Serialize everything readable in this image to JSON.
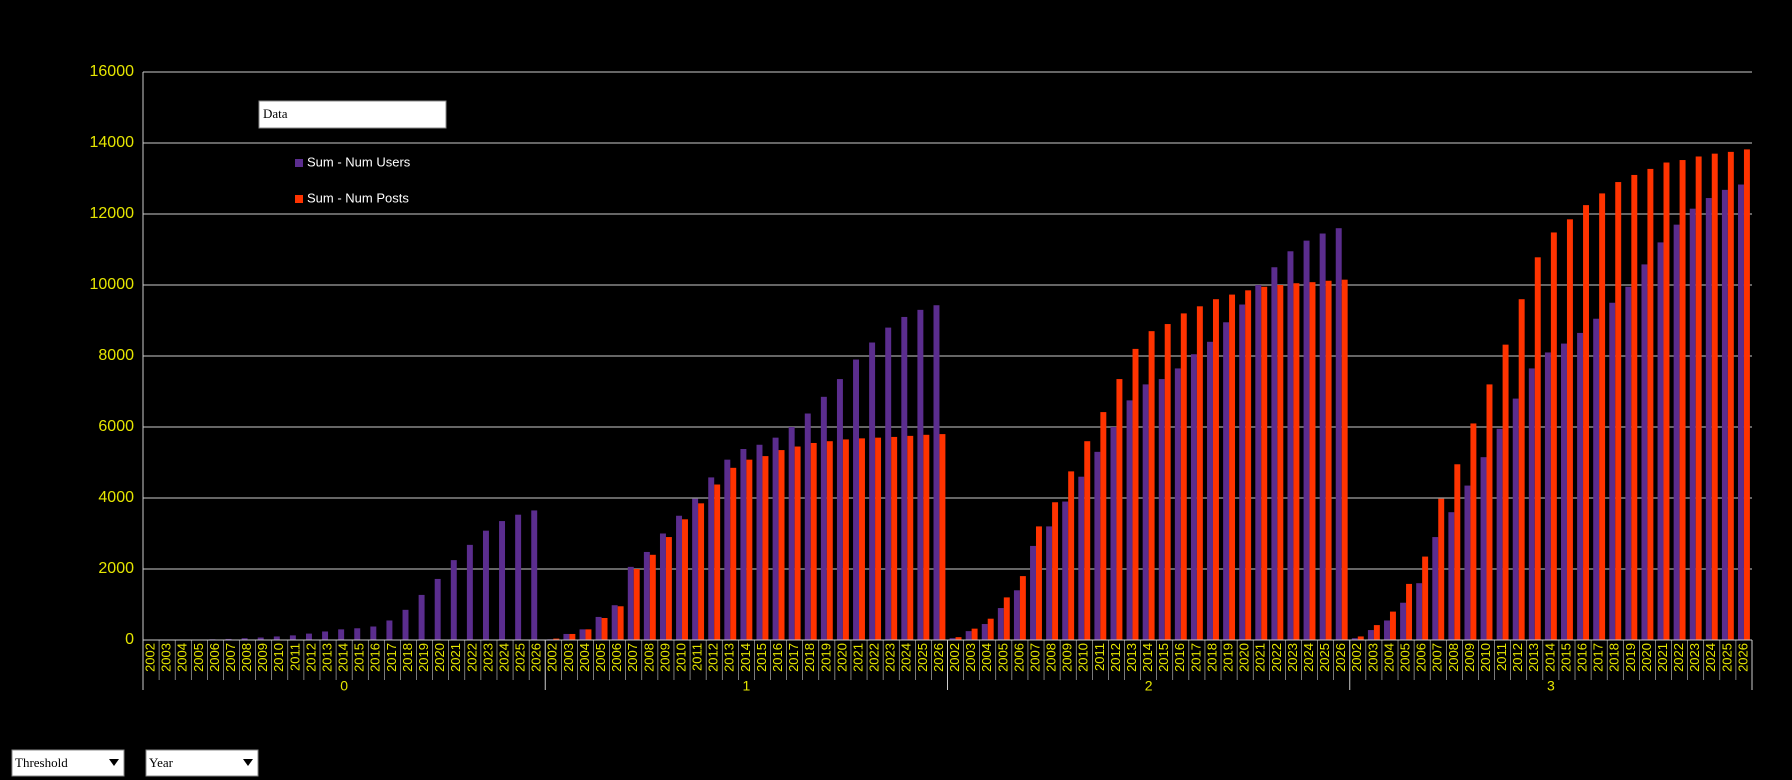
{
  "chart_data": {
    "type": "bar",
    "data_field": "Data",
    "page_fields": [
      "Threshold",
      "Year"
    ],
    "groups": [
      "0",
      "1",
      "2",
      "3"
    ],
    "categories": [
      "2002",
      "2003",
      "2004",
      "2005",
      "2006",
      "2007",
      "2008",
      "2009",
      "2010",
      "2011",
      "2012",
      "2013",
      "2014",
      "2015",
      "2016",
      "2017",
      "2018",
      "2019",
      "2020",
      "2021",
      "2022",
      "2023",
      "2024",
      "2025",
      "2026"
    ],
    "series": [
      {
        "name": "Sum - Num Users",
        "color": "#5b2d8e",
        "values": [
          [
            0,
            0,
            0,
            10,
            20,
            30,
            50,
            70,
            100,
            130,
            180,
            240,
            300,
            330,
            380,
            550,
            850,
            1270,
            1720,
            2250,
            2680,
            3080,
            3350,
            3530,
            3650
          ],
          [
            20,
            170,
            300,
            650,
            980,
            2060,
            2480,
            3000,
            3500,
            3980,
            4580,
            5080,
            5380,
            5500,
            5700,
            6000,
            6380,
            6850,
            7350,
            7900,
            8380,
            8800,
            9100,
            9300,
            9430
          ],
          [
            50,
            250,
            450,
            900,
            1400,
            2650,
            3200,
            3900,
            4600,
            5300,
            6000,
            6750,
            7200,
            7350,
            7650,
            8050,
            8400,
            8950,
            9450,
            10000,
            10500,
            10950,
            11250,
            11450,
            11600
          ],
          [
            50,
            280,
            550,
            1050,
            1600,
            2900,
            3600,
            4350,
            5150,
            5950,
            6800,
            7650,
            8100,
            8350,
            8650,
            9050,
            9500,
            9950,
            10580,
            11200,
            11700,
            12150,
            12450,
            12680,
            12830
          ]
        ]
      },
      {
        "name": "Sum - Num Posts",
        "color": "#ff3300",
        "values": [
          [
            0,
            0,
            0,
            0,
            0,
            0,
            0,
            0,
            0,
            0,
            0,
            0,
            0,
            0,
            0,
            0,
            0,
            0,
            0,
            0,
            0,
            0,
            0,
            0,
            0
          ],
          [
            40,
            170,
            300,
            620,
            950,
            2000,
            2400,
            2900,
            3400,
            3850,
            4380,
            4850,
            5080,
            5180,
            5350,
            5450,
            5550,
            5600,
            5650,
            5680,
            5700,
            5720,
            5750,
            5780,
            5800
          ],
          [
            80,
            320,
            600,
            1200,
            1800,
            3200,
            3880,
            4750,
            5600,
            6420,
            7350,
            8200,
            8700,
            8900,
            9200,
            9400,
            9600,
            9730,
            9850,
            9950,
            10000,
            10050,
            10080,
            10120,
            10150
          ],
          [
            100,
            420,
            800,
            1580,
            2350,
            3980,
            4950,
            6100,
            7200,
            8320,
            9600,
            10780,
            11480,
            11850,
            12250,
            12580,
            12900,
            13100,
            13270,
            13450,
            13520,
            13620,
            13700,
            13750,
            13820
          ]
        ]
      }
    ],
    "ylim": [
      0,
      16000
    ],
    "yticks": [
      0,
      2000,
      4000,
      6000,
      8000,
      10000,
      12000,
      14000,
      16000
    ],
    "grid": true
  }
}
